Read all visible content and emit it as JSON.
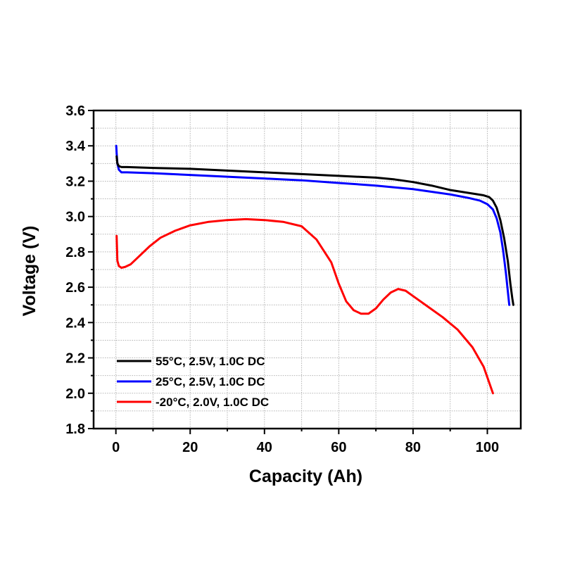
{
  "chart_data": {
    "type": "line",
    "title": "",
    "xlabel": "Capacity (Ah)",
    "ylabel": "Voltage (V)",
    "xlim": [
      -6,
      109
    ],
    "ylim": [
      1.8,
      3.6
    ],
    "xticks": [
      0,
      20,
      40,
      60,
      80,
      100
    ],
    "yticks": [
      1.8,
      2.0,
      2.2,
      2.4,
      2.6,
      2.8,
      3.0,
      3.2,
      3.4,
      3.6
    ],
    "xtick_labels": [
      "0",
      "20",
      "40",
      "60",
      "80",
      "100"
    ],
    "ytick_labels": [
      "1.8",
      "2.0",
      "2.2",
      "2.4",
      "2.6",
      "2.8",
      "3.0",
      "3.2",
      "3.4",
      "3.6"
    ],
    "grid": true,
    "legend_position": "bottom-left",
    "series": [
      {
        "name": "55°C, 2.5V, 1.0C DC",
        "color": "#000000",
        "x": [
          0.2,
          0.4,
          0.8,
          1.5,
          3,
          10,
          20,
          30,
          40,
          50,
          60,
          70,
          75,
          80,
          85,
          90,
          93,
          96,
          99,
          100.5,
          101.5,
          102.5,
          103.5,
          104.5,
          105.5,
          106.2,
          106.7,
          107
        ],
        "y": [
          3.34,
          3.3,
          3.285,
          3.28,
          3.28,
          3.275,
          3.27,
          3.26,
          3.25,
          3.24,
          3.23,
          3.22,
          3.21,
          3.195,
          3.175,
          3.15,
          3.14,
          3.13,
          3.12,
          3.11,
          3.09,
          3.05,
          2.98,
          2.88,
          2.75,
          2.62,
          2.54,
          2.5
        ]
      },
      {
        "name": "25°C, 2.5V, 1.0C DC",
        "color": "#0000ff",
        "x": [
          0.1,
          0.2,
          0.4,
          0.8,
          1.5,
          3,
          10,
          20,
          30,
          40,
          50,
          60,
          70,
          80,
          85,
          90,
          95,
          98,
          100,
          101.5,
          102.5,
          103.5,
          104.3,
          105,
          105.5,
          105.9
        ],
        "y": [
          3.4,
          3.36,
          3.3,
          3.265,
          3.25,
          3.25,
          3.245,
          3.235,
          3.225,
          3.215,
          3.205,
          3.19,
          3.175,
          3.155,
          3.14,
          3.125,
          3.105,
          3.09,
          3.07,
          3.04,
          2.99,
          2.91,
          2.8,
          2.68,
          2.58,
          2.5
        ]
      },
      {
        "name": "-20°C, 2.0V, 1.0C DC",
        "color": "#ff0000",
        "x": [
          0.2,
          0.4,
          0.8,
          1.5,
          2.5,
          4,
          6,
          9,
          12,
          16,
          20,
          25,
          30,
          35,
          40,
          45,
          50,
          54,
          58,
          60,
          62,
          64,
          66,
          68,
          70,
          72,
          74,
          76,
          78,
          80,
          84,
          88,
          92,
          96,
          99,
          101.5
        ],
        "y": [
          2.89,
          2.75,
          2.72,
          2.71,
          2.715,
          2.73,
          2.77,
          2.83,
          2.88,
          2.92,
          2.95,
          2.97,
          2.98,
          2.985,
          2.98,
          2.97,
          2.945,
          2.87,
          2.74,
          2.62,
          2.52,
          2.47,
          2.45,
          2.45,
          2.48,
          2.53,
          2.57,
          2.59,
          2.58,
          2.55,
          2.49,
          2.43,
          2.36,
          2.26,
          2.15,
          2.0
        ]
      }
    ]
  }
}
